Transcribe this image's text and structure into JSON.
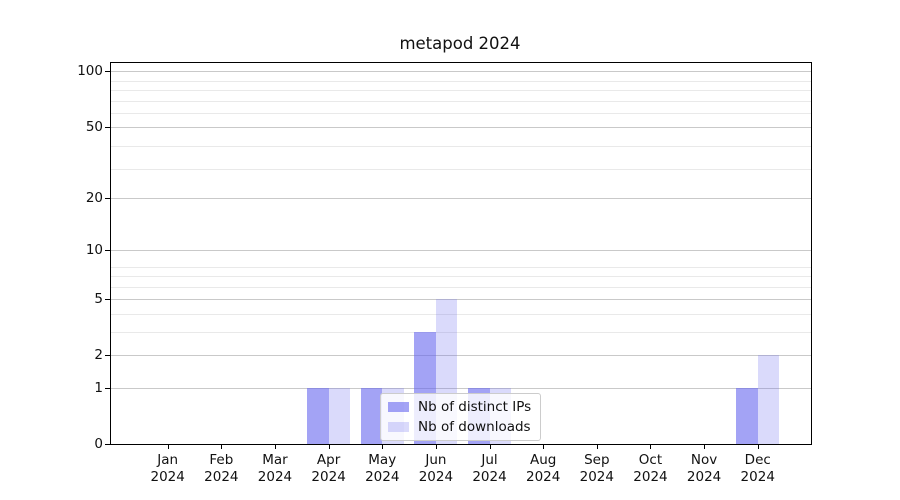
{
  "chart_data": {
    "type": "bar",
    "title": "metapod 2024",
    "categories": [
      "Jan",
      "Feb",
      "Mar",
      "Apr",
      "May",
      "Jun",
      "Jul",
      "Aug",
      "Sep",
      "Oct",
      "Nov",
      "Dec"
    ],
    "x_year": "2024",
    "series": [
      {
        "name": "Nb of distinct IPs",
        "color": "rgba(102,102,238,0.6)",
        "values": [
          0,
          0,
          0,
          1,
          1,
          3,
          1,
          0,
          0,
          0,
          0,
          1
        ]
      },
      {
        "name": "Nb of downloads",
        "color": "rgba(102,102,238,0.24)",
        "values": [
          0,
          0,
          0,
          1,
          1,
          5,
          1,
          0,
          0,
          0,
          0,
          2
        ]
      }
    ],
    "y_scale": "log1p",
    "y_ticks": [
      0,
      1,
      2,
      5,
      10,
      20,
      50,
      100
    ],
    "y_minor_gridline_values": [
      3,
      4,
      6,
      7,
      8,
      29,
      39,
      59,
      69,
      79,
      89
    ],
    "ylim": [
      0,
      110
    ],
    "grid": true,
    "legend": {
      "position": "lower-center"
    },
    "colors": {
      "major_grid": "#c9c9c9",
      "minor_grid": "#e9e9e9",
      "spine": "#000000"
    }
  }
}
